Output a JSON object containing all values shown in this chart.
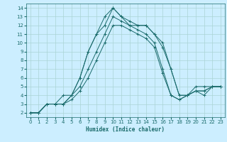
{
  "title": "",
  "xlabel": "Humidex (Indice chaleur)",
  "bg_color": "#cceeff",
  "line_color": "#1a6b6b",
  "grid_color": "#aad4d4",
  "xlim": [
    -0.5,
    23.5
  ],
  "ylim": [
    1.5,
    14.5
  ],
  "xticks": [
    0,
    1,
    2,
    3,
    4,
    5,
    6,
    7,
    8,
    9,
    10,
    11,
    12,
    13,
    14,
    15,
    16,
    17,
    18,
    19,
    20,
    21,
    22,
    23
  ],
  "yticks": [
    2,
    3,
    4,
    5,
    6,
    7,
    8,
    9,
    10,
    11,
    12,
    13,
    14
  ],
  "series": [
    {
      "x": [
        0,
        1,
        2,
        3,
        4,
        5,
        6,
        7,
        8,
        9,
        10,
        11,
        12,
        13,
        14,
        15,
        16,
        17,
        18,
        19,
        20,
        21,
        22,
        23
      ],
      "y": [
        2,
        2,
        3,
        3,
        3,
        4,
        6,
        9,
        11,
        12,
        14,
        13,
        12,
        12,
        12,
        11,
        10,
        7,
        4,
        4,
        5,
        5,
        5,
        5
      ]
    },
    {
      "x": [
        0,
        1,
        2,
        3,
        4,
        5,
        6,
        7,
        8,
        9,
        10,
        11,
        12,
        13,
        14,
        15,
        16,
        17,
        18,
        19,
        20,
        21,
        22,
        23
      ],
      "y": [
        2,
        2,
        3,
        3,
        4,
        4,
        6,
        9,
        11,
        13,
        14,
        13,
        12.5,
        12,
        12,
        11,
        9.5,
        7,
        4,
        4,
        4.5,
        4.5,
        5,
        5
      ]
    },
    {
      "x": [
        0,
        1,
        2,
        3,
        4,
        5,
        6,
        7,
        8,
        9,
        10,
        11,
        12,
        13,
        14,
        15,
        16,
        17,
        18,
        19,
        20,
        21,
        22,
        23
      ],
      "y": [
        2,
        2,
        3,
        3,
        3,
        4,
        5,
        7,
        9,
        11,
        13,
        12.5,
        12,
        11.5,
        11,
        10,
        7,
        4,
        3.5,
        4,
        4.5,
        4.5,
        5,
        5
      ]
    },
    {
      "x": [
        0,
        1,
        2,
        3,
        4,
        5,
        6,
        7,
        8,
        9,
        10,
        11,
        12,
        13,
        14,
        15,
        16,
        17,
        18,
        19,
        20,
        21,
        22,
        23
      ],
      "y": [
        2,
        2,
        3,
        3,
        3,
        3.5,
        4.5,
        6,
        8,
        10,
        12,
        12,
        11.5,
        11,
        10.5,
        9.5,
        6.5,
        4,
        3.5,
        4,
        4.5,
        4,
        5,
        5
      ]
    }
  ]
}
